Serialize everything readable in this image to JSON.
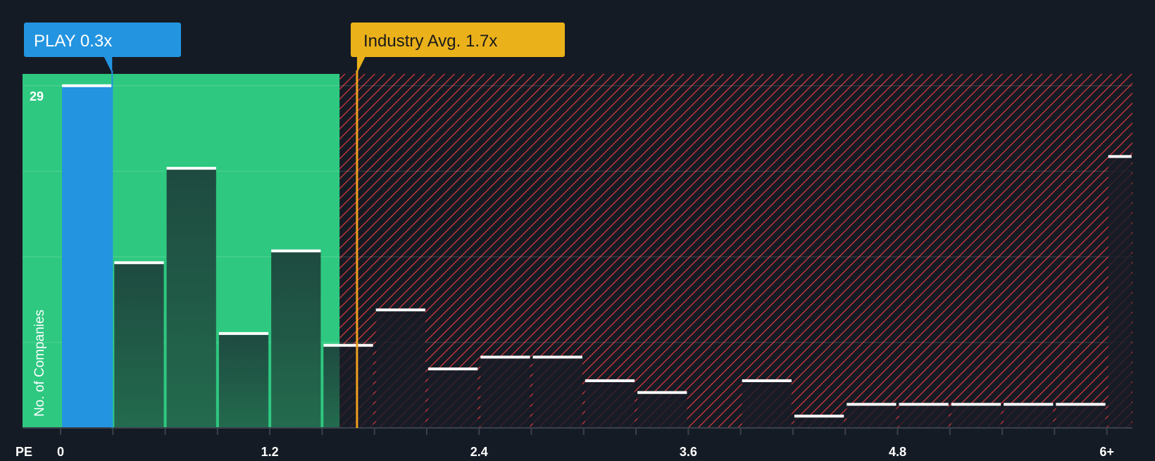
{
  "chart_data": {
    "type": "bar",
    "title": "",
    "xlabel": "PE",
    "ylabel": "No. of Companies",
    "x_ticks": [
      "0",
      "1.2",
      "2.4",
      "3.6",
      "4.8",
      "6+"
    ],
    "x_tick_values": [
      0,
      1.2,
      2.4,
      3.6,
      4.8,
      6.0
    ],
    "y_max_label": "29",
    "ylim": [
      0,
      30
    ],
    "bin_width": 0.3,
    "bins": [
      {
        "from": 0.0,
        "to": 0.3,
        "value": 29,
        "highlight": true
      },
      {
        "from": 0.3,
        "to": 0.6,
        "value": 14
      },
      {
        "from": 0.6,
        "to": 0.9,
        "value": 22
      },
      {
        "from": 0.9,
        "to": 1.2,
        "value": 8
      },
      {
        "from": 1.2,
        "to": 1.5,
        "value": 15
      },
      {
        "from": 1.5,
        "to": 1.8,
        "value": 7
      },
      {
        "from": 1.8,
        "to": 2.1,
        "value": 10
      },
      {
        "from": 2.1,
        "to": 2.4,
        "value": 5
      },
      {
        "from": 2.4,
        "to": 2.7,
        "value": 6
      },
      {
        "from": 2.7,
        "to": 3.0,
        "value": 6
      },
      {
        "from": 3.0,
        "to": 3.3,
        "value": 4
      },
      {
        "from": 3.3,
        "to": 3.6,
        "value": 3
      },
      {
        "from": 3.6,
        "to": 3.9,
        "value": 0
      },
      {
        "from": 3.9,
        "to": 4.2,
        "value": 4
      },
      {
        "from": 4.2,
        "to": 4.5,
        "value": 1
      },
      {
        "from": 4.5,
        "to": 4.8,
        "value": 2
      },
      {
        "from": 4.8,
        "to": 5.1,
        "value": 2
      },
      {
        "from": 5.1,
        "to": 5.4,
        "value": 2
      },
      {
        "from": 5.4,
        "to": 5.7,
        "value": 2
      },
      {
        "from": 5.7,
        "to": 6.0,
        "value": 2
      },
      {
        "from": 6.0,
        "to": 6.15,
        "value": 23
      }
    ],
    "fair_zone_end": 1.6,
    "company": {
      "label": "PLAY 0.3x",
      "value": 0.3
    },
    "industry": {
      "label": "Industry Avg. 1.7x",
      "value": 1.7
    },
    "grid": true
  },
  "colors": {
    "background": "#151b24",
    "green_zone": "#2ec880",
    "company": "#2394e0",
    "industry": "#eab11a",
    "hatch": "#e0393e"
  }
}
